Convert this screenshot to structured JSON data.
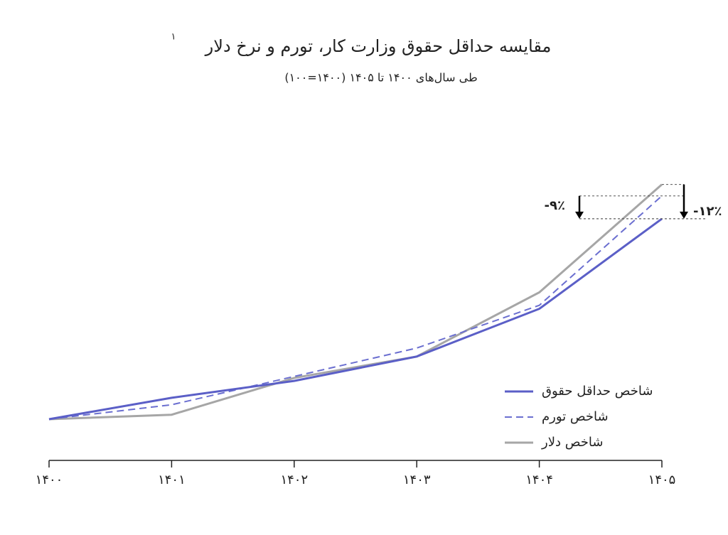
{
  "chart_data": {
    "type": "line",
    "title": "مقایسه حداقل حقوق وزارت کار، تورم و نرخ دلار",
    "title_note": "۱",
    "subtitle": "طی سال‌های ۱۴۰۰ تا ۱۴۰۵ (۱۴۰۰=۱۰۰)",
    "categories": [
      "۱۴۰۰",
      "۱۴۰۱",
      "۱۴۰۲",
      "۱۴۰۳",
      "۱۴۰۴",
      "۱۴۰۵"
    ],
    "series": [
      {
        "name": "شاخص حداقل حقوق",
        "color": "#5b5fc7",
        "dash": false,
        "values": [
          100,
          143,
          177,
          226,
          322,
          503
        ]
      },
      {
        "name": "شاخص تورم",
        "color": "#6b6fd0",
        "dash": true,
        "values": [
          100,
          129,
          186,
          243,
          329,
          549
        ]
      },
      {
        "name": "شاخص دلار",
        "color": "#a6a6a6",
        "dash": false,
        "values": [
          100,
          109,
          183,
          226,
          355,
          572
        ]
      }
    ],
    "ylim": [
      20,
      600
    ],
    "annotations": [
      {
        "text": "-۹٪",
        "from_series": 1,
        "to_series": 0
      },
      {
        "text": "-۱۲٪",
        "from_series": 2,
        "to_series": 0
      }
    ]
  }
}
